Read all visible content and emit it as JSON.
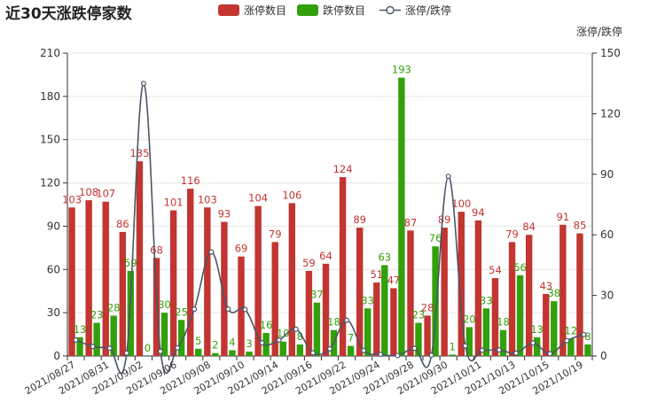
{
  "chart_data": {
    "type": "bar",
    "title": "近30天涨跌停家数",
    "y2label": "涨停/跌停",
    "ylim": [
      0,
      210
    ],
    "y2lim": [
      0,
      150
    ],
    "yticks": [
      0,
      30,
      60,
      90,
      120,
      150,
      180,
      210
    ],
    "y2ticks": [
      0,
      30,
      60,
      90,
      120,
      150
    ],
    "x": [
      "2021/08/27",
      "2021/08/30",
      "2021/08/31",
      "2021/09/01",
      "2021/09/02",
      "2021/09/03",
      "2021/09/06",
      "2021/09/07",
      "2021/09/08",
      "2021/09/09",
      "2021/09/10",
      "2021/09/13",
      "2021/09/14",
      "2021/09/15",
      "2021/09/16",
      "2021/09/17",
      "2021/09/22",
      "2021/09/23",
      "2021/09/24",
      "2021/09/27",
      "2021/09/28",
      "2021/09/29",
      "2021/09/30",
      "2021/10/08",
      "2021/10/11",
      "2021/10/12",
      "2021/10/13",
      "2021/10/14",
      "2021/10/15",
      "2021/10/18",
      "2021/10/19"
    ],
    "x_tick_labels": [
      "2021/08/27",
      "2021/08/31",
      "2021/09/02",
      "2021/09/06",
      "2021/09/08",
      "2021/09/10",
      "2021/09/14",
      "2021/09/16",
      "2021/09/22",
      "2021/09/24",
      "2021/09/28",
      "2021/09/30",
      "2021/10/11",
      "2021/10/13",
      "2021/10/15",
      "2021/10/19"
    ],
    "series": [
      {
        "name": "涨停数目",
        "type": "bar",
        "color": "#c23531",
        "values": [
          103,
          108,
          107,
          86,
          135,
          68,
          101,
          116,
          103,
          93,
          69,
          104,
          79,
          106,
          59,
          64,
          124,
          89,
          51,
          47,
          87,
          28,
          89,
          100,
          94,
          54,
          79,
          84,
          43,
          91,
          85
        ]
      },
      {
        "name": "跌停数目",
        "type": "bar",
        "color": "#32a00a",
        "values": [
          13,
          23,
          28,
          59,
          0,
          30,
          25,
          5,
          2,
          4,
          3,
          16,
          10,
          8,
          37,
          18,
          7,
          33,
          63,
          193,
          23,
          76,
          1,
          20,
          33,
          18,
          56,
          13,
          38,
          12,
          8
        ]
      },
      {
        "name": "涨停/跌停",
        "type": "line",
        "axis": "right",
        "color": "#4a5568",
        "values": [
          7.92,
          4.7,
          3.82,
          1.46,
          135,
          2.27,
          4.04,
          23.2,
          51.5,
          23.25,
          23,
          6.5,
          7.9,
          13.25,
          1.59,
          3.56,
          17.71,
          2.7,
          0.81,
          0.24,
          3.78,
          0.37,
          89,
          5,
          2.85,
          3,
          1.41,
          6.46,
          1.13,
          7.58,
          10.63
        ]
      }
    ],
    "legend_position": "top-center"
  }
}
